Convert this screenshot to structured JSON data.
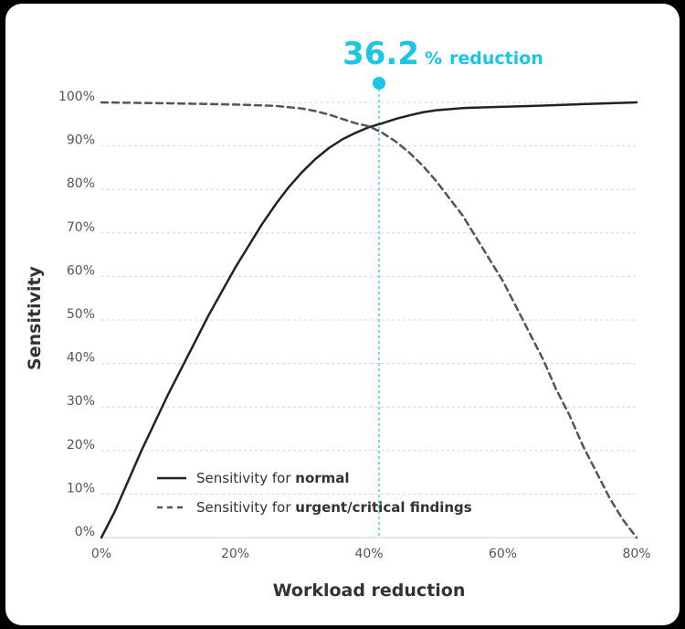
{
  "chart_data": {
    "type": "line",
    "title": "",
    "xlabel": "Workload reduction",
    "ylabel": "Sensitivity",
    "xlim": [
      0,
      80
    ],
    "ylim": [
      0,
      100
    ],
    "x_ticks": [
      "0%",
      "20%",
      "40%",
      "60%",
      "80%"
    ],
    "y_ticks": [
      "0%",
      "10%",
      "20%",
      "30%",
      "40%",
      "50%",
      "60%",
      "70%",
      "80%",
      "90%",
      "100%"
    ],
    "grid": "horizontal dashed",
    "legend_position": "bottom-left",
    "series": [
      {
        "name_prefix": "Sensitivity for ",
        "name_bold": "normal",
        "style": "solid",
        "color": "#222222",
        "points": [
          [
            0,
            0
          ],
          [
            2,
            6
          ],
          [
            4,
            13
          ],
          [
            6,
            20
          ],
          [
            8,
            26.5
          ],
          [
            10,
            33
          ],
          [
            12,
            39
          ],
          [
            14,
            45
          ],
          [
            16,
            51
          ],
          [
            18,
            56.5
          ],
          [
            20,
            62
          ],
          [
            22,
            67
          ],
          [
            24,
            72
          ],
          [
            26,
            76.5
          ],
          [
            28,
            80.5
          ],
          [
            30,
            84
          ],
          [
            32,
            87
          ],
          [
            34,
            89.5
          ],
          [
            36,
            91.5
          ],
          [
            38,
            93
          ],
          [
            40,
            94.3
          ],
          [
            42,
            95.2
          ],
          [
            44,
            96.2
          ],
          [
            46,
            97
          ],
          [
            48,
            97.7
          ],
          [
            50,
            98.2
          ],
          [
            54,
            98.7
          ],
          [
            58,
            98.9
          ],
          [
            65,
            99.2
          ],
          [
            72,
            99.6
          ],
          [
            80,
            100
          ]
        ]
      },
      {
        "name_prefix": "Sensitivity for ",
        "name_bold": "urgent/critical findings",
        "style": "dashed",
        "color": "#555555",
        "points": [
          [
            0,
            100
          ],
          [
            10,
            99.8
          ],
          [
            20,
            99.5
          ],
          [
            26,
            99.2
          ],
          [
            30,
            98.6
          ],
          [
            32,
            98
          ],
          [
            34,
            97.2
          ],
          [
            36,
            96.2
          ],
          [
            38,
            95.2
          ],
          [
            40,
            94.5
          ],
          [
            42,
            93
          ],
          [
            44,
            91
          ],
          [
            46,
            88.5
          ],
          [
            48,
            85.5
          ],
          [
            50,
            82
          ],
          [
            52,
            78
          ],
          [
            54,
            74
          ],
          [
            56,
            69
          ],
          [
            58,
            64
          ],
          [
            60,
            59
          ],
          [
            62,
            53
          ],
          [
            64,
            47
          ],
          [
            66,
            41
          ],
          [
            68,
            34
          ],
          [
            70,
            28
          ],
          [
            72,
            21
          ],
          [
            74,
            15
          ],
          [
            76,
            9
          ],
          [
            78,
            4
          ],
          [
            80,
            0
          ]
        ]
      }
    ],
    "annotation": {
      "x": 41.5,
      "value": "36.2",
      "unit": "%",
      "label": "reduction",
      "color": "#1cc4e6"
    }
  }
}
